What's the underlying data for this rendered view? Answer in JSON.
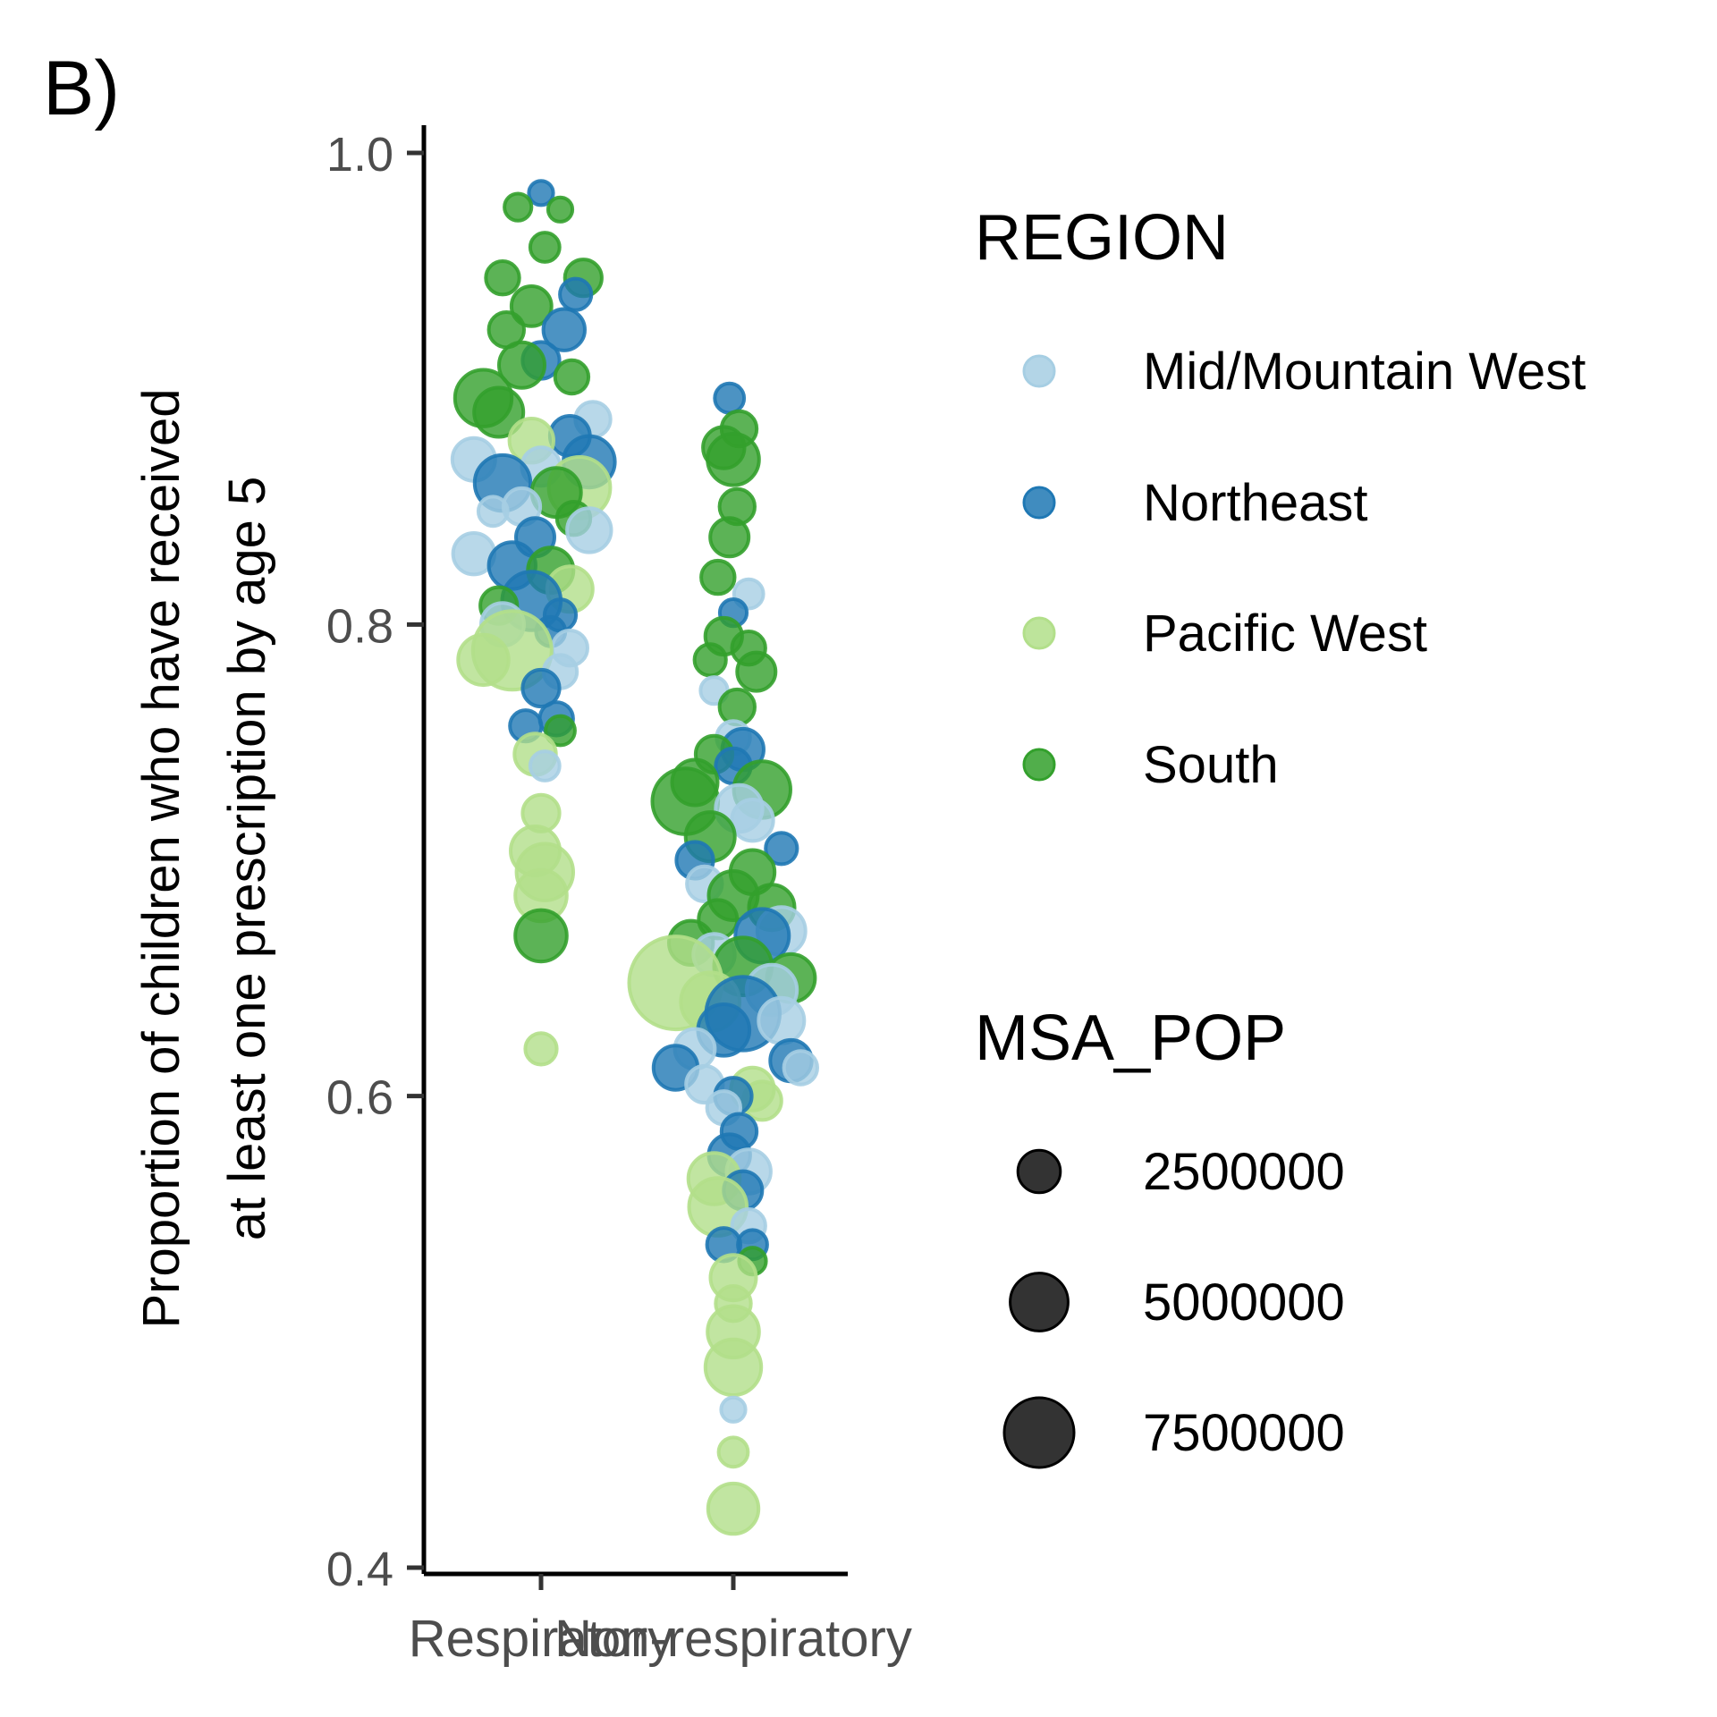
{
  "chart_data": {
    "type": "scatter",
    "panel_label": "B)",
    "ylabel_lines": [
      "Proportion of children who have received",
      "at least one prescription by age 5"
    ],
    "xlabel": "",
    "categories": [
      "Respiratory",
      "Non-respiratory"
    ],
    "ylim": [
      0.4,
      1.0
    ],
    "y_ticks": [
      {
        "value": 0.4,
        "label": "0.4"
      },
      {
        "value": 0.6,
        "label": "0.6"
      },
      {
        "value": 0.8,
        "label": "0.8"
      },
      {
        "value": 1.0,
        "label": "1.0"
      }
    ],
    "grid": false,
    "colors": {
      "Mid/Mountain West": "#a6cee3",
      "Northeast": "#1f78b4",
      "Pacific West": "#b2df8a",
      "South": "#33a02c"
    },
    "legend_color": {
      "title": "REGION",
      "items": [
        "Mid/Mountain West",
        "Northeast",
        "Pacific West",
        "South"
      ]
    },
    "legend_size": {
      "title": "MSA_POP",
      "items": [
        {
          "value": 2500000,
          "label": "2500000"
        },
        {
          "value": 5000000,
          "label": "5000000"
        },
        {
          "value": 7500000,
          "label": "7500000"
        }
      ]
    },
    "points": [
      {
        "cat": "Respiratory",
        "jitter": 0.0,
        "y": 0.983,
        "region": "Northeast",
        "pop": 300000
      },
      {
        "cat": "Respiratory",
        "jitter": -0.12,
        "y": 0.977,
        "region": "South",
        "pop": 400000
      },
      {
        "cat": "Respiratory",
        "jitter": 0.1,
        "y": 0.976,
        "region": "South",
        "pop": 300000
      },
      {
        "cat": "Respiratory",
        "jitter": 0.02,
        "y": 0.96,
        "region": "South",
        "pop": 500000
      },
      {
        "cat": "Respiratory",
        "jitter": -0.2,
        "y": 0.947,
        "region": "South",
        "pop": 700000
      },
      {
        "cat": "Respiratory",
        "jitter": 0.22,
        "y": 0.947,
        "region": "South",
        "pop": 900000
      },
      {
        "cat": "Respiratory",
        "jitter": 0.18,
        "y": 0.94,
        "region": "Northeast",
        "pop": 600000
      },
      {
        "cat": "Respiratory",
        "jitter": -0.05,
        "y": 0.935,
        "region": "South",
        "pop": 1100000
      },
      {
        "cat": "Respiratory",
        "jitter": 0.12,
        "y": 0.925,
        "region": "Northeast",
        "pop": 1200000
      },
      {
        "cat": "Respiratory",
        "jitter": -0.18,
        "y": 0.925,
        "region": "South",
        "pop": 800000
      },
      {
        "cat": "Respiratory",
        "jitter": 0.0,
        "y": 0.912,
        "region": "Northeast",
        "pop": 900000
      },
      {
        "cat": "Respiratory",
        "jitter": -0.1,
        "y": 0.91,
        "region": "South",
        "pop": 1500000
      },
      {
        "cat": "Respiratory",
        "jitter": 0.16,
        "y": 0.905,
        "region": "South",
        "pop": 700000
      },
      {
        "cat": "Respiratory",
        "jitter": -0.3,
        "y": 0.896,
        "region": "South",
        "pop": 2500000
      },
      {
        "cat": "Respiratory",
        "jitter": -0.22,
        "y": 0.89,
        "region": "South",
        "pop": 1800000
      },
      {
        "cat": "Respiratory",
        "jitter": 0.27,
        "y": 0.887,
        "region": "Mid/Mountain West",
        "pop": 800000
      },
      {
        "cat": "Respiratory",
        "jitter": 0.15,
        "y": 0.88,
        "region": "Northeast",
        "pop": 1100000
      },
      {
        "cat": "Respiratory",
        "jitter": -0.05,
        "y": 0.878,
        "region": "Pacific West",
        "pop": 1400000
      },
      {
        "cat": "Respiratory",
        "jitter": 0.25,
        "y": 0.869,
        "region": "Northeast",
        "pop": 2000000
      },
      {
        "cat": "Respiratory",
        "jitter": -0.35,
        "y": 0.87,
        "region": "Mid/Mountain West",
        "pop": 1300000
      },
      {
        "cat": "Respiratory",
        "jitter": 0.0,
        "y": 0.867,
        "region": "Mid/Mountain West",
        "pop": 1000000
      },
      {
        "cat": "Respiratory",
        "jitter": -0.2,
        "y": 0.86,
        "region": "Northeast",
        "pop": 2400000
      },
      {
        "cat": "Respiratory",
        "jitter": 0.2,
        "y": 0.858,
        "region": "Pacific West",
        "pop": 3000000
      },
      {
        "cat": "Respiratory",
        "jitter": 0.08,
        "y": 0.856,
        "region": "South",
        "pop": 1800000
      },
      {
        "cat": "Respiratory",
        "jitter": -0.1,
        "y": 0.85,
        "region": "Mid/Mountain West",
        "pop": 900000
      },
      {
        "cat": "Respiratory",
        "jitter": -0.25,
        "y": 0.848,
        "region": "Mid/Mountain West",
        "pop": 500000
      },
      {
        "cat": "Respiratory",
        "jitter": 0.17,
        "y": 0.845,
        "region": "South",
        "pop": 700000
      },
      {
        "cat": "Respiratory",
        "jitter": 0.25,
        "y": 0.84,
        "region": "Mid/Mountain West",
        "pop": 1400000
      },
      {
        "cat": "Respiratory",
        "jitter": -0.03,
        "y": 0.837,
        "region": "Northeast",
        "pop": 1000000
      },
      {
        "cat": "Respiratory",
        "jitter": -0.35,
        "y": 0.83,
        "region": "Mid/Mountain West",
        "pop": 1200000
      },
      {
        "cat": "Respiratory",
        "jitter": -0.15,
        "y": 0.825,
        "region": "Northeast",
        "pop": 1600000
      },
      {
        "cat": "Respiratory",
        "jitter": 0.05,
        "y": 0.823,
        "region": "South",
        "pop": 1500000
      },
      {
        "cat": "Respiratory",
        "jitter": 0.15,
        "y": 0.815,
        "region": "Pacific West",
        "pop": 1500000
      },
      {
        "cat": "Respiratory",
        "jitter": -0.05,
        "y": 0.81,
        "region": "Northeast",
        "pop": 2700000
      },
      {
        "cat": "Respiratory",
        "jitter": -0.22,
        "y": 0.808,
        "region": "South",
        "pop": 900000
      },
      {
        "cat": "Respiratory",
        "jitter": 0.1,
        "y": 0.804,
        "region": "Northeast",
        "pop": 600000
      },
      {
        "cat": "Respiratory",
        "jitter": -0.2,
        "y": 0.8,
        "region": "Mid/Mountain West",
        "pop": 1300000
      },
      {
        "cat": "Respiratory",
        "jitter": 0.05,
        "y": 0.797,
        "region": "Northeast",
        "pop": 500000
      },
      {
        "cat": "Respiratory",
        "jitter": 0.15,
        "y": 0.79,
        "region": "Mid/Mountain West",
        "pop": 800000
      },
      {
        "cat": "Respiratory",
        "jitter": -0.15,
        "y": 0.789,
        "region": "Pacific West",
        "pop": 5200000
      },
      {
        "cat": "Respiratory",
        "jitter": -0.3,
        "y": 0.785,
        "region": "Pacific West",
        "pop": 1900000
      },
      {
        "cat": "Respiratory",
        "jitter": 0.1,
        "y": 0.78,
        "region": "Mid/Mountain West",
        "pop": 700000
      },
      {
        "cat": "Respiratory",
        "jitter": 0.0,
        "y": 0.773,
        "region": "Northeast",
        "pop": 900000
      },
      {
        "cat": "Respiratory",
        "jitter": 0.08,
        "y": 0.76,
        "region": "Northeast",
        "pop": 700000
      },
      {
        "cat": "Respiratory",
        "jitter": -0.08,
        "y": 0.757,
        "region": "Northeast",
        "pop": 600000
      },
      {
        "cat": "Respiratory",
        "jitter": 0.1,
        "y": 0.755,
        "region": "South",
        "pop": 500000
      },
      {
        "cat": "Respiratory",
        "jitter": -0.03,
        "y": 0.745,
        "region": "Pacific West",
        "pop": 1200000
      },
      {
        "cat": "Respiratory",
        "jitter": 0.02,
        "y": 0.74,
        "region": "Mid/Mountain West",
        "pop": 500000
      },
      {
        "cat": "Respiratory",
        "jitter": 0.0,
        "y": 0.72,
        "region": "Pacific West",
        "pop": 900000
      },
      {
        "cat": "Respiratory",
        "jitter": -0.03,
        "y": 0.704,
        "region": "Pacific West",
        "pop": 1800000
      },
      {
        "cat": "Respiratory",
        "jitter": 0.02,
        "y": 0.695,
        "region": "Pacific West",
        "pop": 2500000
      },
      {
        "cat": "Respiratory",
        "jitter": 0.0,
        "y": 0.685,
        "region": "Pacific West",
        "pop": 2000000
      },
      {
        "cat": "Respiratory",
        "jitter": 0.0,
        "y": 0.668,
        "region": "South",
        "pop": 2000000
      },
      {
        "cat": "Respiratory",
        "jitter": 0.0,
        "y": 0.62,
        "region": "Pacific West",
        "pop": 600000
      },
      {
        "cat": "Non-respiratory",
        "jitter": -0.02,
        "y": 0.896,
        "region": "Northeast",
        "pop": 500000
      },
      {
        "cat": "Non-respiratory",
        "jitter": 0.03,
        "y": 0.883,
        "region": "South",
        "pop": 800000
      },
      {
        "cat": "Non-respiratory",
        "jitter": -0.05,
        "y": 0.875,
        "region": "South",
        "pop": 1200000
      },
      {
        "cat": "Non-respiratory",
        "jitter": 0.0,
        "y": 0.87,
        "region": "South",
        "pop": 2000000
      },
      {
        "cat": "Non-respiratory",
        "jitter": 0.02,
        "y": 0.85,
        "region": "South",
        "pop": 800000
      },
      {
        "cat": "Non-respiratory",
        "jitter": -0.02,
        "y": 0.837,
        "region": "South",
        "pop": 1000000
      },
      {
        "cat": "Non-respiratory",
        "jitter": -0.08,
        "y": 0.82,
        "region": "South",
        "pop": 700000
      },
      {
        "cat": "Non-respiratory",
        "jitter": 0.08,
        "y": 0.813,
        "region": "Mid/Mountain West",
        "pop": 500000
      },
      {
        "cat": "Non-respiratory",
        "jitter": 0.0,
        "y": 0.805,
        "region": "Northeast",
        "pop": 400000
      },
      {
        "cat": "Non-respiratory",
        "jitter": -0.05,
        "y": 0.795,
        "region": "South",
        "pop": 900000
      },
      {
        "cat": "Non-respiratory",
        "jitter": 0.08,
        "y": 0.79,
        "region": "South",
        "pop": 700000
      },
      {
        "cat": "Non-respiratory",
        "jitter": -0.12,
        "y": 0.785,
        "region": "South",
        "pop": 600000
      },
      {
        "cat": "Non-respiratory",
        "jitter": 0.12,
        "y": 0.78,
        "region": "South",
        "pop": 1000000
      },
      {
        "cat": "Non-respiratory",
        "jitter": -0.1,
        "y": 0.772,
        "region": "Mid/Mountain West",
        "pop": 400000
      },
      {
        "cat": "Non-respiratory",
        "jitter": 0.02,
        "y": 0.765,
        "region": "South",
        "pop": 800000
      },
      {
        "cat": "Non-respiratory",
        "jitter": 0.0,
        "y": 0.752,
        "region": "Mid/Mountain West",
        "pop": 700000
      },
      {
        "cat": "Non-respiratory",
        "jitter": 0.05,
        "y": 0.747,
        "region": "Northeast",
        "pop": 1200000
      },
      {
        "cat": "Non-respiratory",
        "jitter": -0.1,
        "y": 0.745,
        "region": "South",
        "pop": 900000
      },
      {
        "cat": "Non-respiratory",
        "jitter": 0.0,
        "y": 0.74,
        "region": "Northeast",
        "pop": 800000
      },
      {
        "cat": "Non-respiratory",
        "jitter": -0.2,
        "y": 0.733,
        "region": "South",
        "pop": 1500000
      },
      {
        "cat": "Non-respiratory",
        "jitter": 0.15,
        "y": 0.73,
        "region": "South",
        "pop": 2500000
      },
      {
        "cat": "Non-respiratory",
        "jitter": -0.25,
        "y": 0.725,
        "region": "South",
        "pop": 3500000
      },
      {
        "cat": "Non-respiratory",
        "jitter": 0.03,
        "y": 0.722,
        "region": "Mid/Mountain West",
        "pop": 1600000
      },
      {
        "cat": "Non-respiratory",
        "jitter": 0.1,
        "y": 0.717,
        "region": "Mid/Mountain West",
        "pop": 1200000
      },
      {
        "cat": "Non-respiratory",
        "jitter": -0.12,
        "y": 0.71,
        "region": "South",
        "pop": 1800000
      },
      {
        "cat": "Non-respiratory",
        "jitter": 0.25,
        "y": 0.705,
        "region": "Northeast",
        "pop": 600000
      },
      {
        "cat": "Non-respiratory",
        "jitter": -0.2,
        "y": 0.7,
        "region": "Northeast",
        "pop": 900000
      },
      {
        "cat": "Non-respiratory",
        "jitter": 0.1,
        "y": 0.695,
        "region": "South",
        "pop": 1400000
      },
      {
        "cat": "Non-respiratory",
        "jitter": -0.15,
        "y": 0.69,
        "region": "Mid/Mountain West",
        "pop": 800000
      },
      {
        "cat": "Non-respiratory",
        "jitter": 0.0,
        "y": 0.685,
        "region": "South",
        "pop": 1800000
      },
      {
        "cat": "Non-respiratory",
        "jitter": 0.2,
        "y": 0.68,
        "region": "South",
        "pop": 1500000
      },
      {
        "cat": "Non-respiratory",
        "jitter": -0.08,
        "y": 0.675,
        "region": "South",
        "pop": 1000000
      },
      {
        "cat": "Non-respiratory",
        "jitter": 0.25,
        "y": 0.67,
        "region": "Mid/Mountain West",
        "pop": 1700000
      },
      {
        "cat": "Non-respiratory",
        "jitter": 0.15,
        "y": 0.668,
        "region": "Northeast",
        "pop": 2200000
      },
      {
        "cat": "Non-respiratory",
        "jitter": -0.22,
        "y": 0.665,
        "region": "South",
        "pop": 1400000
      },
      {
        "cat": "Non-respiratory",
        "jitter": -0.1,
        "y": 0.66,
        "region": "Mid/Mountain West",
        "pop": 1200000
      },
      {
        "cat": "Non-respiratory",
        "jitter": 0.05,
        "y": 0.655,
        "region": "South",
        "pop": 2600000
      },
      {
        "cat": "Non-respiratory",
        "jitter": 0.3,
        "y": 0.65,
        "region": "South",
        "pop": 1700000
      },
      {
        "cat": "Non-respiratory",
        "jitter": -0.3,
        "y": 0.648,
        "region": "Pacific West",
        "pop": 7500000
      },
      {
        "cat": "Non-respiratory",
        "jitter": 0.2,
        "y": 0.645,
        "region": "Mid/Mountain West",
        "pop": 1900000
      },
      {
        "cat": "Non-respiratory",
        "jitter": -0.12,
        "y": 0.64,
        "region": "Pacific West",
        "pop": 2700000
      },
      {
        "cat": "Non-respiratory",
        "jitter": 0.05,
        "y": 0.635,
        "region": "Northeast",
        "pop": 4500000
      },
      {
        "cat": "Non-respiratory",
        "jitter": 0.25,
        "y": 0.632,
        "region": "Mid/Mountain West",
        "pop": 1500000
      },
      {
        "cat": "Non-respiratory",
        "jitter": -0.05,
        "y": 0.628,
        "region": "Northeast",
        "pop": 2000000
      },
      {
        "cat": "Non-respiratory",
        "jitter": -0.2,
        "y": 0.62,
        "region": "Mid/Mountain West",
        "pop": 1100000
      },
      {
        "cat": "Non-respiratory",
        "jitter": 0.3,
        "y": 0.615,
        "region": "Northeast",
        "pop": 1200000
      },
      {
        "cat": "Non-respiratory",
        "jitter": -0.3,
        "y": 0.612,
        "region": "Northeast",
        "pop": 1400000
      },
      {
        "cat": "Non-respiratory",
        "jitter": 0.35,
        "y": 0.612,
        "region": "Mid/Mountain West",
        "pop": 700000
      },
      {
        "cat": "Non-respiratory",
        "jitter": -0.15,
        "y": 0.605,
        "region": "Mid/Mountain West",
        "pop": 900000
      },
      {
        "cat": "Non-respiratory",
        "jitter": 0.1,
        "y": 0.603,
        "region": "Pacific West",
        "pop": 1300000
      },
      {
        "cat": "Non-respiratory",
        "jitter": 0.15,
        "y": 0.598,
        "region": "Pacific West",
        "pop": 1000000
      },
      {
        "cat": "Non-respiratory",
        "jitter": 0.0,
        "y": 0.6,
        "region": "Northeast",
        "pop": 900000
      },
      {
        "cat": "Non-respiratory",
        "jitter": -0.05,
        "y": 0.595,
        "region": "Mid/Mountain West",
        "pop": 700000
      },
      {
        "cat": "Non-respiratory",
        "jitter": 0.03,
        "y": 0.585,
        "region": "Northeast",
        "pop": 800000
      },
      {
        "cat": "Non-respiratory",
        "jitter": -0.02,
        "y": 0.575,
        "region": "Northeast",
        "pop": 1200000
      },
      {
        "cat": "Non-respiratory",
        "jitter": 0.08,
        "y": 0.568,
        "region": "Mid/Mountain West",
        "pop": 1400000
      },
      {
        "cat": "Non-respiratory",
        "jitter": -0.1,
        "y": 0.565,
        "region": "Pacific West",
        "pop": 2000000
      },
      {
        "cat": "Non-respiratory",
        "jitter": 0.05,
        "y": 0.56,
        "region": "Northeast",
        "pop": 1000000
      },
      {
        "cat": "Non-respiratory",
        "jitter": -0.08,
        "y": 0.553,
        "region": "Pacific West",
        "pop": 2600000
      },
      {
        "cat": "Non-respiratory",
        "jitter": 0.08,
        "y": 0.545,
        "region": "Mid/Mountain West",
        "pop": 700000
      },
      {
        "cat": "Non-respiratory",
        "jitter": 0.1,
        "y": 0.537,
        "region": "Northeast",
        "pop": 500000
      },
      {
        "cat": "Non-respiratory",
        "jitter": -0.05,
        "y": 0.537,
        "region": "Northeast",
        "pop": 700000
      },
      {
        "cat": "Non-respiratory",
        "jitter": 0.1,
        "y": 0.53,
        "region": "South",
        "pop": 400000
      },
      {
        "cat": "Non-respiratory",
        "jitter": 0.0,
        "y": 0.523,
        "region": "Pacific West",
        "pop": 1500000
      },
      {
        "cat": "Non-respiratory",
        "jitter": 0.0,
        "y": 0.512,
        "region": "Pacific West",
        "pop": 800000
      },
      {
        "cat": "Non-respiratory",
        "jitter": 0.0,
        "y": 0.5,
        "region": "Pacific West",
        "pop": 2000000
      },
      {
        "cat": "Non-respiratory",
        "jitter": 0.0,
        "y": 0.485,
        "region": "Pacific West",
        "pop": 2400000
      },
      {
        "cat": "Non-respiratory",
        "jitter": 0.0,
        "y": 0.467,
        "region": "Mid/Mountain West",
        "pop": 300000
      },
      {
        "cat": "Non-respiratory",
        "jitter": 0.0,
        "y": 0.449,
        "region": "Pacific West",
        "pop": 500000
      },
      {
        "cat": "Non-respiratory",
        "jitter": 0.0,
        "y": 0.425,
        "region": "Pacific West",
        "pop": 1900000
      }
    ]
  }
}
